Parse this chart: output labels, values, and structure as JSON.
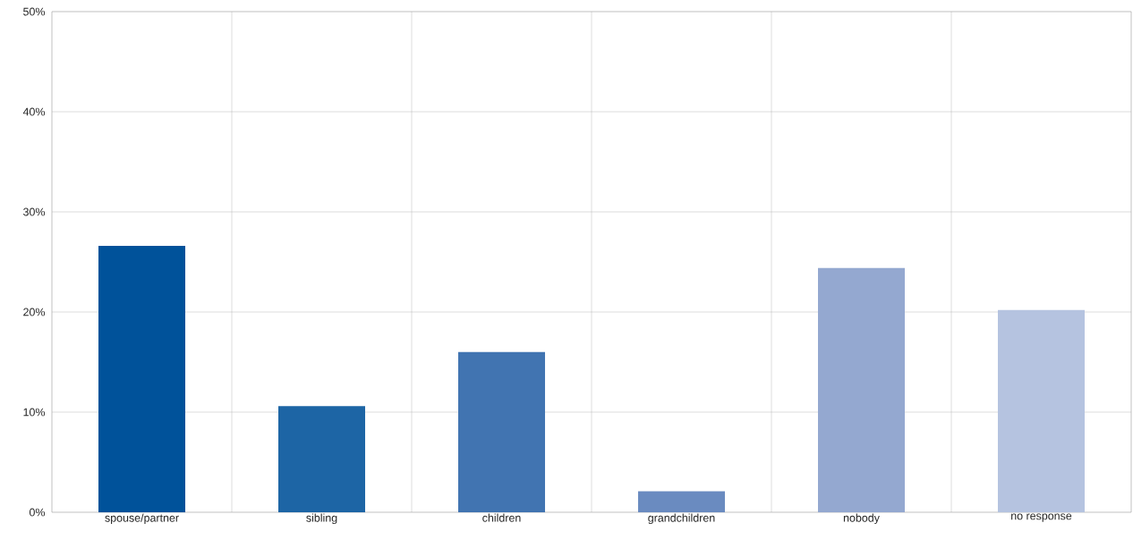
{
  "chart_data": {
    "type": "bar",
    "categories": [
      "spouse/partner",
      "sibling",
      "children",
      "grandchildren",
      "nobody",
      "no response"
    ],
    "values": [
      26.6,
      10.6,
      16.0,
      2.1,
      24.4,
      20.2
    ],
    "colors": [
      "#00529a",
      "#1d65a5",
      "#4174b1",
      "#6a8bc0",
      "#94a8d0",
      "#b5c3e0"
    ],
    "ylim": [
      0,
      50
    ],
    "yticks": [
      {
        "value": 0,
        "label": "0%"
      },
      {
        "value": 10,
        "label": "10%"
      },
      {
        "value": 20,
        "label": "20%"
      },
      {
        "value": 30,
        "label": "30%"
      },
      {
        "value": 40,
        "label": "40%"
      },
      {
        "value": 50,
        "label": "50%"
      }
    ],
    "grid": true
  }
}
